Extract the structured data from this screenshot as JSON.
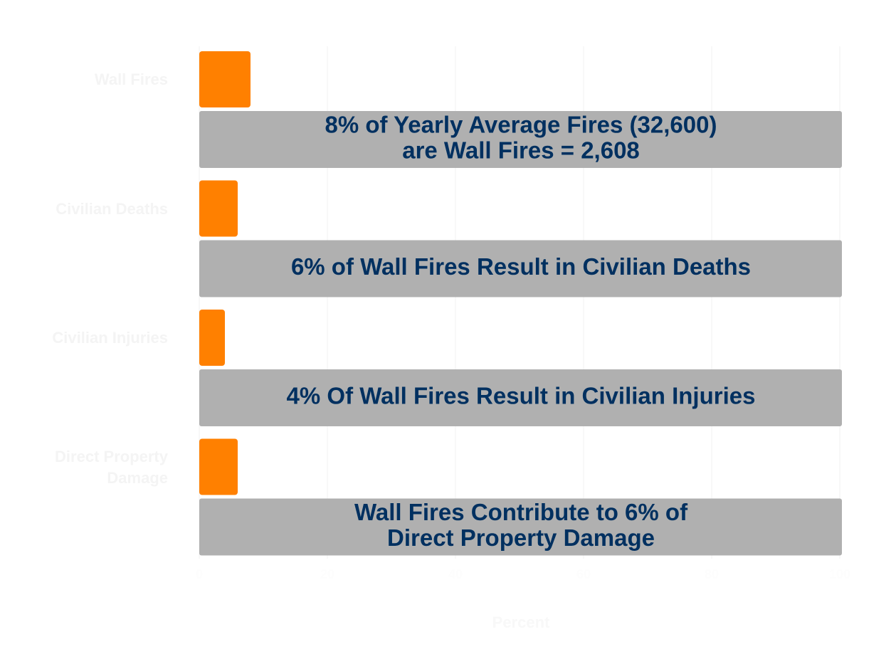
{
  "chart_data": {
    "type": "bar",
    "orientation": "horizontal",
    "categories": [
      "Wall Fires",
      "Civilian Deaths",
      "Civilian Injuries",
      "Direct Property Damage"
    ],
    "values": [
      8,
      6,
      4,
      6
    ],
    "color": "#ff8000",
    "xlabel": "Percent",
    "xlim": [
      0,
      100
    ],
    "xticks": [
      0,
      20,
      40,
      60,
      80,
      100
    ],
    "grid": true,
    "annotations": [
      {
        "lines": [
          "8% of Yearly Average Fires (32,600)",
          "are Wall Fires = 2,608"
        ]
      },
      {
        "lines": [
          "6% of Wall Fires Result in Civilian Deaths"
        ]
      },
      {
        "lines": [
          "4% Of Wall Fires Result in Civilian Injuries"
        ]
      },
      {
        "lines": [
          "Wall Fires Contribute to 6% of",
          "Direct Property Damage"
        ]
      }
    ]
  }
}
